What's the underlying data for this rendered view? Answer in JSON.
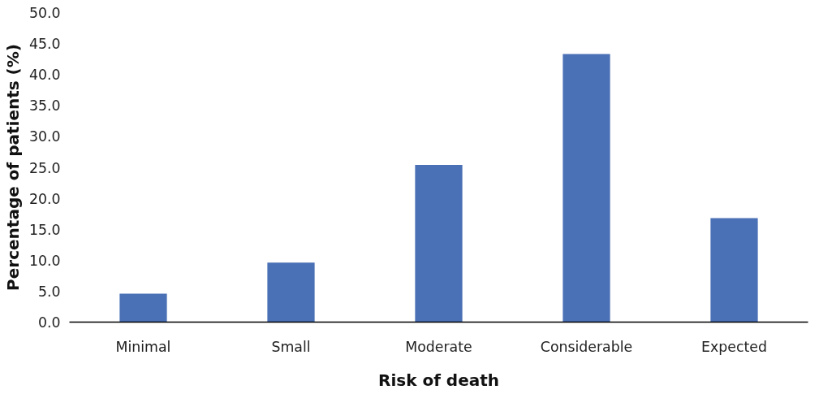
{
  "chart_data": {
    "type": "bar",
    "xlabel": "Risk of death",
    "ylabel": "Percentage of patients (%)",
    "categories": [
      "Minimal",
      "Small",
      "Moderate",
      "Considerable",
      "Expected"
    ],
    "values": [
      4.6,
      9.6,
      25.4,
      43.3,
      16.8
    ],
    "color": "#4a70b5",
    "ylim": [
      0,
      50
    ],
    "yticks": [
      {
        "value": 0,
        "label": "0.0"
      },
      {
        "value": 5,
        "label": "5.0"
      },
      {
        "value": 10,
        "label": "10.0"
      },
      {
        "value": 15,
        "label": "15.0"
      },
      {
        "value": 20,
        "label": "20.0"
      },
      {
        "value": 25,
        "label": "25.0"
      },
      {
        "value": 30,
        "label": "30.0"
      },
      {
        "value": 35,
        "label": "35.0"
      },
      {
        "value": 40,
        "label": "40.0"
      },
      {
        "value": 45,
        "label": "45.0"
      },
      {
        "value": 50,
        "label": "50.0"
      }
    ],
    "grid": false
  }
}
